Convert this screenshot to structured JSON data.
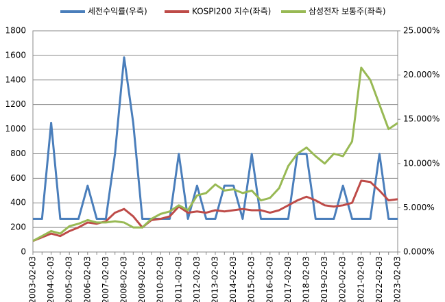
{
  "chart_data": {
    "type": "line",
    "categories": [
      "2003-02-03",
      null,
      "2004-02-03",
      null,
      "2005-02-03",
      null,
      "2006-02-03",
      null,
      "2007-02-03",
      null,
      "2008-02-03",
      null,
      "2009-02-03",
      null,
      "2010-02-03",
      null,
      "2011-02-03",
      null,
      "2012-02-03",
      null,
      "2013-02-03",
      null,
      "2014-02-03",
      null,
      "2015-02-03",
      null,
      "2016-02-03",
      null,
      "2017-02-03",
      null,
      "2018-02-03",
      null,
      "2019-02-03",
      null,
      "2020-02-03",
      null,
      "2021-02-03",
      null,
      "2022-02-03",
      null,
      "2023-02-03"
    ],
    "series": [
      {
        "name": "세전수익률(우측)",
        "color": "#4a7ebb",
        "axis": "y2",
        "values": [
          3.75,
          3.75,
          14.6,
          3.75,
          3.75,
          3.75,
          7.5,
          3.75,
          3.75,
          11.1,
          22,
          14.6,
          3.75,
          3.75,
          3.75,
          3.75,
          11.1,
          3.75,
          7.5,
          3.75,
          3.75,
          7.5,
          7.5,
          3.75,
          11.1,
          3.75,
          3.75,
          3.75,
          3.75,
          11.1,
          11.1,
          3.75,
          3.75,
          3.75,
          7.5,
          3.75,
          3.75,
          3.75,
          11.1,
          3.75,
          3.75
        ]
      },
      {
        "name": "KOSPI200 지수(좌측)",
        "color": "#be4b48",
        "values": [
          90,
          120,
          150,
          130,
          170,
          200,
          240,
          230,
          250,
          320,
          350,
          290,
          200,
          260,
          270,
          290,
          370,
          320,
          330,
          320,
          340,
          330,
          340,
          350,
          340,
          340,
          320,
          340,
          380,
          420,
          450,
          420,
          380,
          370,
          380,
          400,
          580,
          570,
          500,
          420,
          430
        ]
      },
      {
        "name": "삼성전자 보통주(좌측)",
        "color": "#98b954",
        "values": [
          90,
          130,
          170,
          150,
          210,
          230,
          260,
          240,
          240,
          250,
          240,
          200,
          200,
          270,
          310,
          330,
          380,
          340,
          460,
          480,
          550,
          500,
          510,
          480,
          500,
          420,
          440,
          520,
          700,
          800,
          850,
          780,
          720,
          800,
          780,
          900,
          1500,
          1400,
          1200,
          1000,
          1050
        ]
      }
    ],
    "ylim": [
      0,
      1800
    ],
    "yticks": [
      0,
      200,
      400,
      600,
      800,
      1000,
      1200,
      1400,
      1600,
      1800
    ],
    "y2lim": [
      0,
      25
    ],
    "y2ticks": [
      {
        "value": 0,
        "label": "0.000%"
      },
      {
        "value": 5,
        "label": "5.000%"
      },
      {
        "value": 10,
        "label": "10.000%"
      },
      {
        "value": 15,
        "label": "15.000%"
      },
      {
        "value": 20,
        "label": "20.000%"
      },
      {
        "value": 25,
        "label": "25.000%"
      }
    ],
    "grid": true
  }
}
